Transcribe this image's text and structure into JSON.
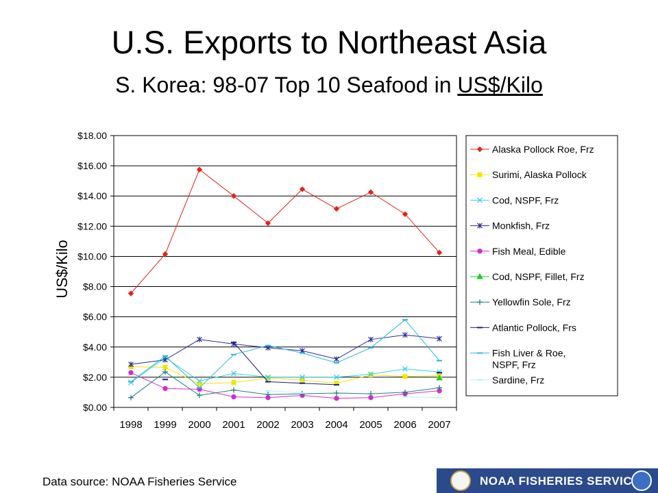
{
  "title": "U.S. Exports to Northeast Asia",
  "subtitle_prefix": "S. Korea: 98-07 Top 10 Seafood in ",
  "subtitle_unit": "US$/Kilo",
  "source": "Data source: NOAA Fisheries Service",
  "footer_logo_text": "NOAA FISHERIES SERVICE",
  "chart_data": {
    "type": "line",
    "title": "",
    "xlabel": "",
    "ylabel": "US$/Kilo",
    "ylim": [
      0,
      18
    ],
    "yticks": [
      "$0.00",
      "$2.00",
      "$4.00",
      "$6.00",
      "$8.00",
      "$10.00",
      "$12.00",
      "$14.00",
      "$16.00",
      "$18.00"
    ],
    "grid": true,
    "legend_position": "right",
    "x": [
      "1998",
      "1999",
      "2000",
      "2001",
      "2002",
      "2003",
      "2004",
      "2005",
      "2006",
      "2007"
    ],
    "series": [
      {
        "name": "Alaska Pollock Roe, Frz",
        "color": "#e0251b",
        "marker": "diamond",
        "values": [
          7.55,
          10.15,
          15.75,
          14.0,
          12.2,
          14.45,
          13.15,
          14.25,
          12.8,
          10.25
        ]
      },
      {
        "name": "Surimi, Alaska Pollock",
        "color": "#f2e600",
        "marker": "square",
        "values": [
          2.7,
          2.65,
          1.55,
          1.65,
          1.95,
          1.8,
          1.6,
          2.15,
          2.05,
          2.1
        ]
      },
      {
        "name": "Cod, NSPF, Frz",
        "color": "#36d0e8",
        "marker": "x",
        "values": [
          1.65,
          3.3,
          1.75,
          2.25,
          2.0,
          2.0,
          2.0,
          2.2,
          2.55,
          2.35
        ]
      },
      {
        "name": "Monkfish, Frz",
        "color": "#2a2a9a",
        "marker": "star",
        "values": [
          2.85,
          3.15,
          4.5,
          4.2,
          3.95,
          3.75,
          3.2,
          4.5,
          4.8,
          4.55
        ]
      },
      {
        "name": "Fish Meal, Edible",
        "color": "#d42ad0",
        "marker": "circle",
        "values": [
          2.3,
          1.25,
          1.2,
          0.7,
          0.65,
          0.8,
          0.6,
          0.65,
          0.9,
          1.1
        ]
      },
      {
        "name": "Cod, NSPF, Fillet, Frz",
        "color": "#22cc22",
        "marker": "triangle",
        "values": [
          null,
          null,
          null,
          null,
          null,
          null,
          null,
          null,
          null,
          1.95
        ]
      },
      {
        "name": "Yellowfin Sole, Frz",
        "color": "#1f7f7f",
        "marker": "plus",
        "values": [
          0.65,
          2.35,
          0.8,
          1.15,
          0.85,
          0.9,
          0.95,
          0.9,
          1.0,
          1.3
        ]
      },
      {
        "name": "Atlantic Pollock, Frs",
        "color": "#1a1a8a",
        "marker": "dash",
        "values": [
          null,
          1.85,
          null,
          4.3,
          1.7,
          1.6,
          1.5,
          null,
          null,
          2.3
        ]
      },
      {
        "name": "Fish Liver & Roe, NSPF, Frz",
        "color": "#2ab8d8",
        "marker": "dash",
        "values": [
          1.7,
          3.4,
          1.3,
          3.5,
          4.1,
          3.6,
          2.95,
          3.95,
          5.8,
          3.1
        ]
      },
      {
        "name": "Sardine, Frz",
        "color": "#b8f0f8",
        "marker": "dash",
        "values": [
          null,
          null,
          null,
          null,
          1.1,
          0.95,
          null,
          null,
          0.7,
          0.65
        ]
      }
    ]
  }
}
